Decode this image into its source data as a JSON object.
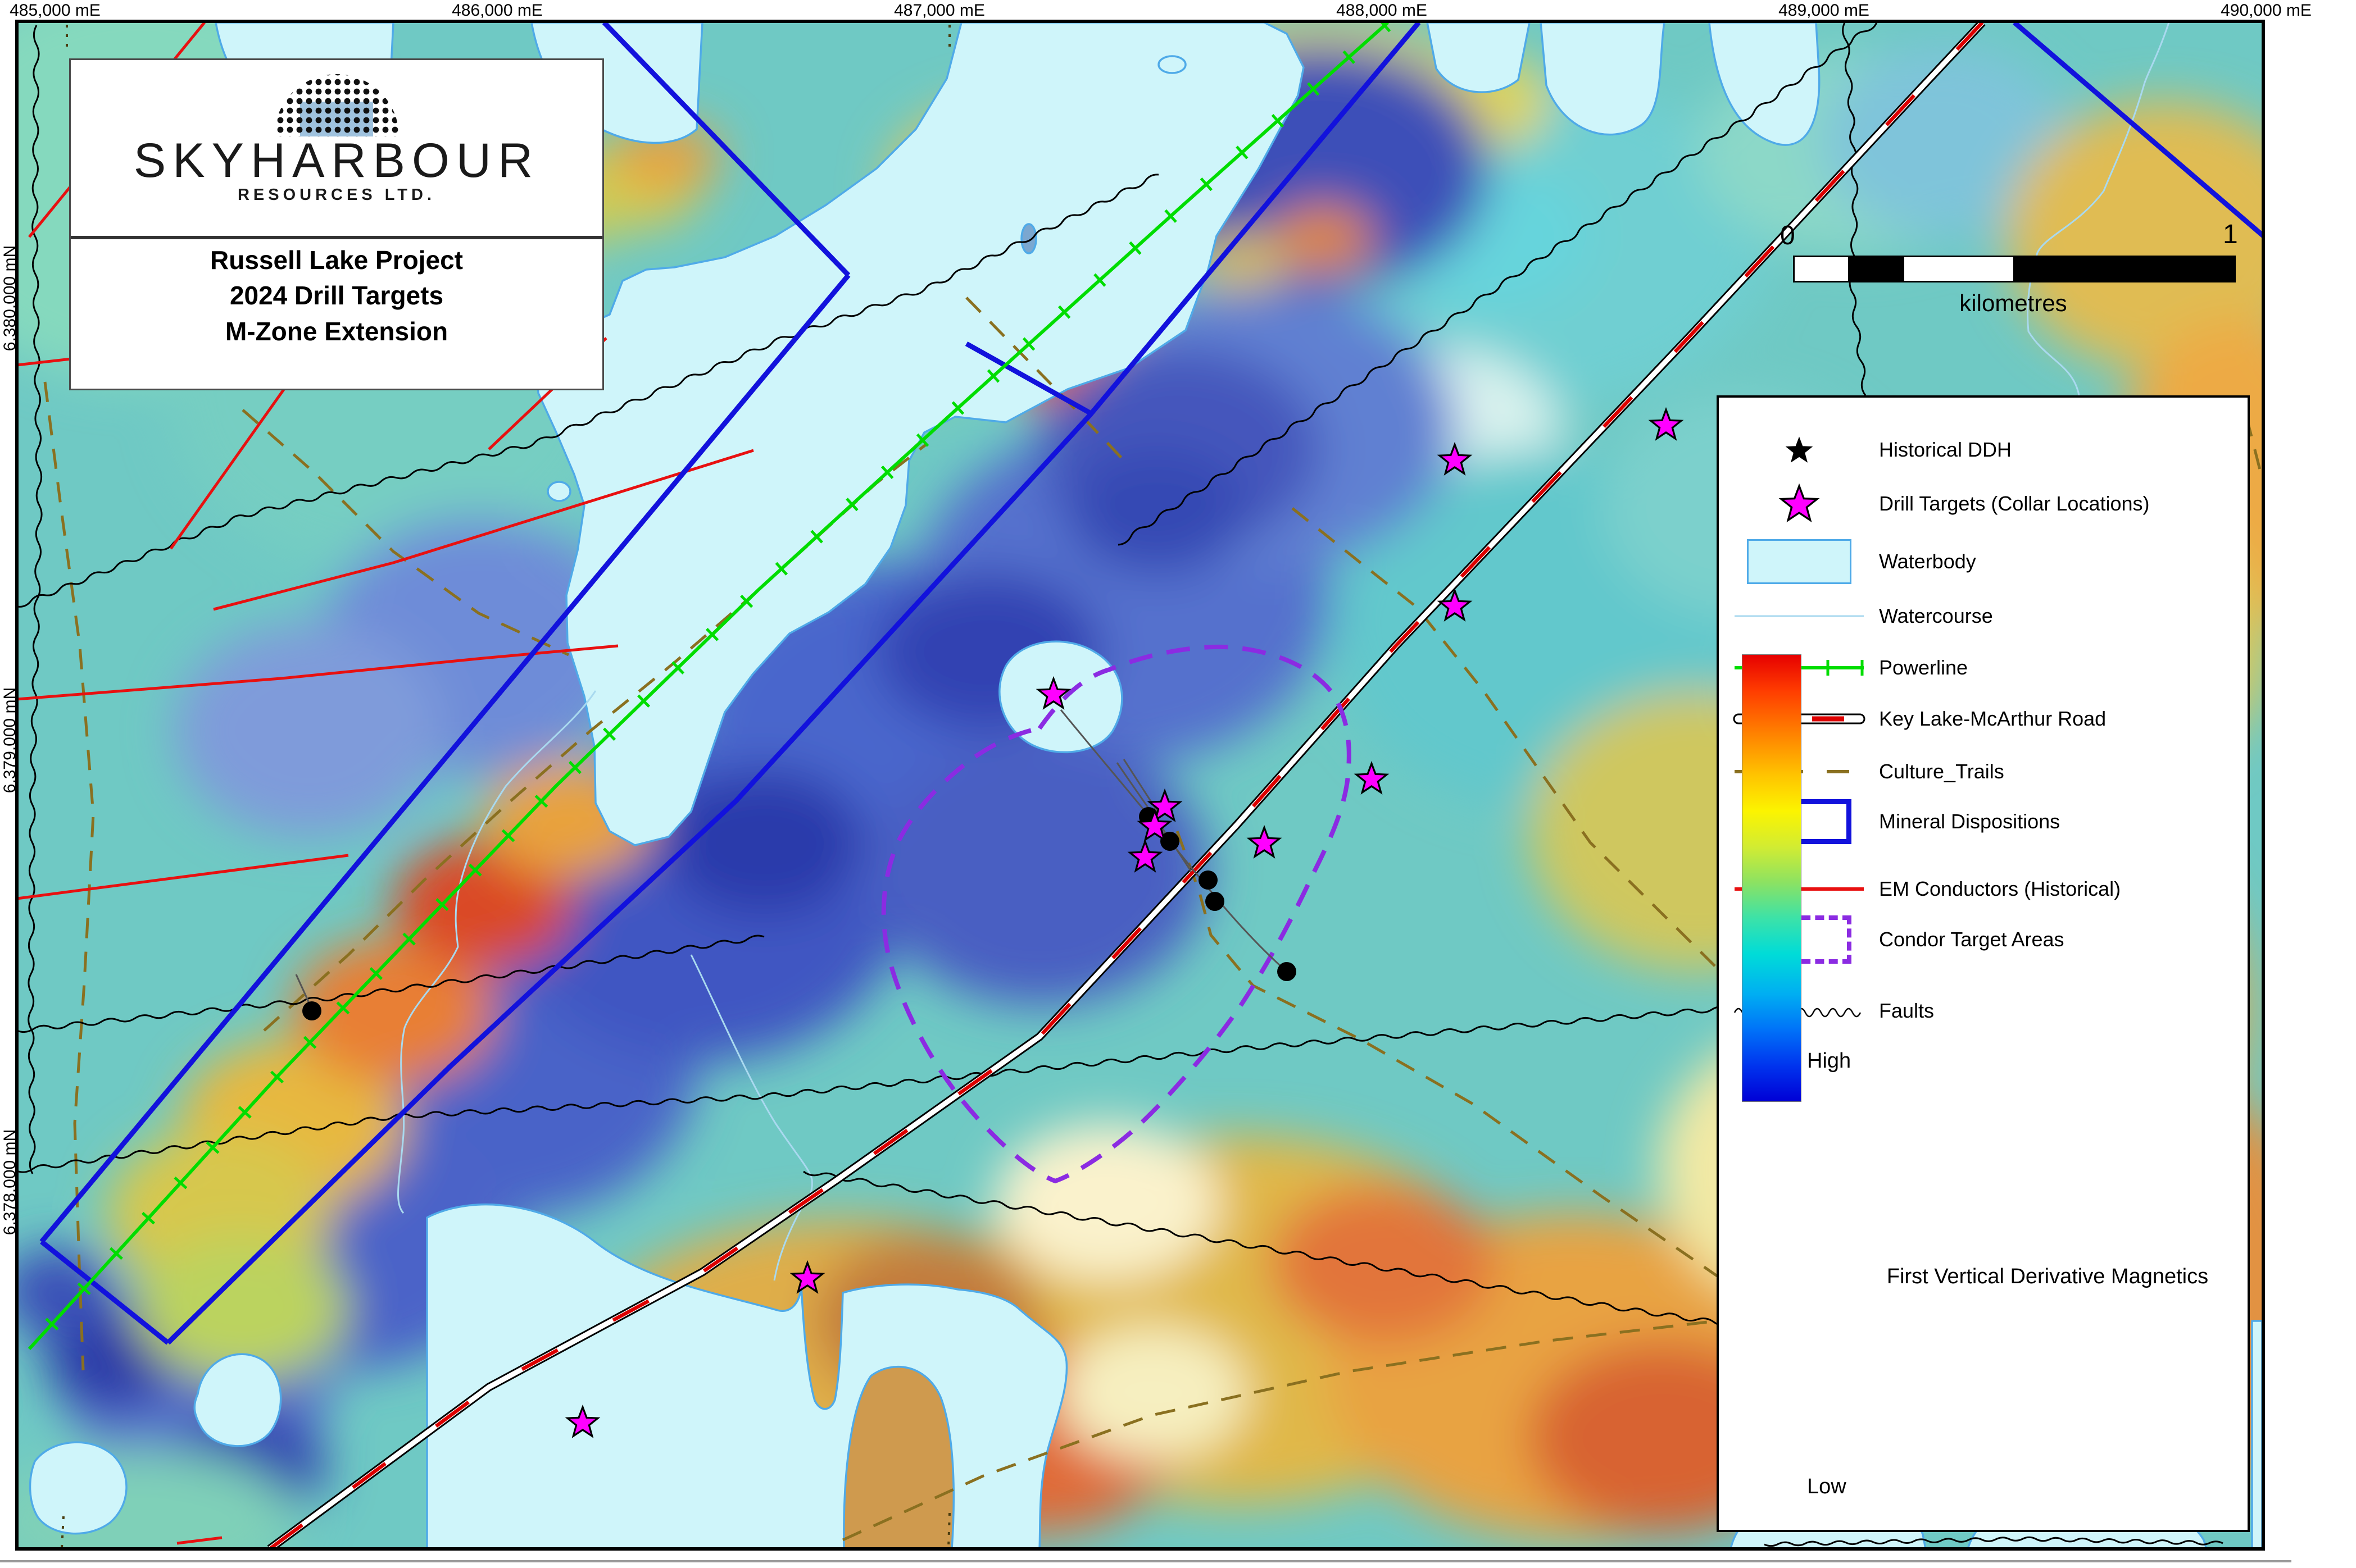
{
  "title_box": {
    "company": "SKYHARBOUR",
    "company_sub": "RESOURCES LTD.",
    "project_lines": [
      "Russell Lake Project",
      "2024 Drill Targets",
      "M-Zone Extension"
    ]
  },
  "coordinate_labels": {
    "top": [
      "485,000 mE",
      "486,000 mE",
      "487,000 mE",
      "488,000 mE",
      "489,000 mE",
      "490,000 mE"
    ],
    "top_x": [
      98,
      885,
      1672,
      2459,
      3246,
      4033
    ],
    "left": [
      "6,380,000 mN",
      "6,379,000 mN",
      "6,378,000 mN"
    ],
    "left_y": [
      530,
      1317,
      2104
    ]
  },
  "scale_bar": {
    "start_label": "0",
    "end_label": "1",
    "unit_label": "kilometres"
  },
  "legend": {
    "items": [
      {
        "symbol": "historical-ddh-star",
        "label": "Historical DDH"
      },
      {
        "symbol": "drill-target-star",
        "label": "Drill Targets (Collar Locations)"
      },
      {
        "symbol": "waterbody-swatch",
        "label": "Waterbody"
      },
      {
        "symbol": "watercourse-line",
        "label": "Watercourse"
      },
      {
        "symbol": "powerline-line",
        "label": "Powerline"
      },
      {
        "symbol": "road-line",
        "label": "Key Lake-McArthur Road"
      },
      {
        "symbol": "culture-trails-line",
        "label": "Culture_Trails"
      },
      {
        "symbol": "mineral-dispositions-swatch",
        "label": "Mineral Dispositions"
      },
      {
        "symbol": "em-conductors-line",
        "label": "EM Conductors (Historical)"
      },
      {
        "symbol": "condor-target-areas-swatch",
        "label": "Condor Target Areas"
      },
      {
        "symbol": "faults-line",
        "label": "Faults"
      }
    ],
    "colorbar": {
      "high_label": "High",
      "low_label": "Low",
      "title": "First Vertical Derivative Magnetics"
    }
  },
  "map_markers": {
    "drill_targets": [
      [
        1875,
        1237
      ],
      [
        2073,
        1437
      ],
      [
        2055,
        1472
      ],
      [
        2038,
        1527
      ],
      [
        2250,
        1502
      ],
      [
        2441,
        1388
      ],
      [
        2589,
        820
      ],
      [
        2965,
        758
      ],
      [
        2589,
        1080
      ],
      [
        1437,
        2277
      ],
      [
        1037,
        2534
      ]
    ],
    "historical_ddh": [
      [
        2044,
        1454
      ],
      [
        2082,
        1498
      ],
      [
        2150,
        1567
      ],
      [
        2162,
        1605
      ],
      [
        2290,
        1730
      ],
      [
        555,
        1800
      ]
    ]
  },
  "colors": {
    "drill_target": "#FF00FF",
    "historical_ddh": "#000000",
    "waterbody_fill": "#CFF5FA",
    "waterbody_border": "#4FAAE8",
    "watercourse": "#A9D9EF",
    "powerline": "#00DD00",
    "road_red": "#DD0000",
    "culture_trails": "#8A7020",
    "mineral_dispositions": "#1212DC",
    "em_conductors": "#E81010",
    "condor_target": "#8B2BE2",
    "faults": "#000000"
  }
}
